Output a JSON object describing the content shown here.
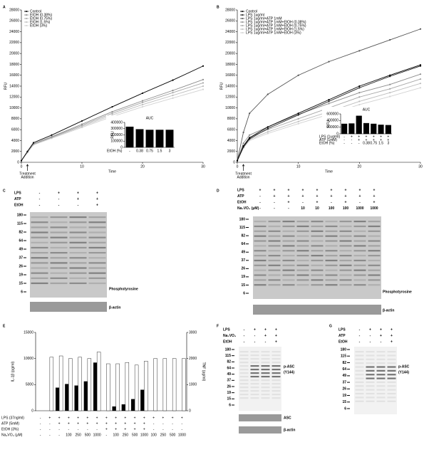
{
  "panel_labels": [
    "A",
    "B",
    "C",
    "D",
    "E",
    "F",
    "G"
  ],
  "chart_data": [
    {
      "type": "line",
      "xlabel": "Time",
      "ylabel": "RFU",
      "xlim": [
        0,
        30
      ],
      "ylim": [
        0,
        28000
      ],
      "xticks": [
        0,
        10,
        20,
        30
      ],
      "yticks": [
        0,
        2000,
        4000,
        6000,
        8000,
        10000,
        12000,
        14000,
        16000,
        18000,
        20000,
        22000,
        24000,
        26000,
        28000
      ],
      "annotation": [
        "Treatment",
        "Addition"
      ],
      "legend": "upper left",
      "x": [
        0,
        1,
        2,
        5,
        10,
        15,
        20,
        25,
        30
      ],
      "series": [
        {
          "name": "Control",
          "color": "#000000",
          "values": [
            300,
            2000,
            3600,
            5000,
            7600,
            10200,
            12700,
            15100,
            17700
          ]
        },
        {
          "name": "EtOH (0.38%)",
          "color": "#8c8c8c",
          "values": [
            300,
            1900,
            3400,
            4700,
            7000,
            9300,
            11300,
            13200,
            15200
          ]
        },
        {
          "name": "EtOH (0.75%)",
          "color": "#a6a6a6",
          "values": [
            300,
            1900,
            3400,
            4600,
            6800,
            9000,
            11000,
            12800,
            14600
          ]
        },
        {
          "name": "EtOH (1.5%)",
          "color": "#bdbdbd",
          "values": [
            300,
            1800,
            3300,
            4500,
            6600,
            8700,
            10600,
            12300,
            14000
          ]
        },
        {
          "name": "EtOH (3%)",
          "color": "#d2d2d2",
          "values": [
            300,
            1800,
            3200,
            4400,
            6400,
            8400,
            10200,
            11800,
            13400
          ]
        }
      ]
    },
    {
      "type": "bar",
      "title": "AUC",
      "ylabel": "RFU",
      "ylim": [
        0,
        400000
      ],
      "yticks": [
        0,
        100000,
        200000,
        300000,
        400000
      ],
      "series": [
        {
          "color": "#000000",
          "values": [
            330000,
            290000,
            280000,
            280000,
            280000
          ]
        }
      ],
      "table": [
        {
          "name": "EtOH (%)",
          "cells": [
            "-",
            "0.38",
            "0.75",
            "1.5",
            "3"
          ]
        }
      ]
    },
    {
      "type": "line",
      "xlabel": "Time",
      "ylabel": "RFU",
      "xlim": [
        0,
        30
      ],
      "ylim": [
        0,
        28000
      ],
      "xticks": [
        0,
        10,
        20,
        30
      ],
      "yticks": [
        0,
        2000,
        4000,
        6000,
        8000,
        10000,
        12000,
        14000,
        16000,
        18000,
        20000,
        22000,
        24000,
        26000,
        28000
      ],
      "annotation": [
        "Treatment",
        "Addition"
      ],
      "legend": "upper left",
      "x": [
        0,
        1,
        2,
        5,
        10,
        15,
        20,
        25,
        30
      ],
      "series": [
        {
          "name": "Control",
          "color": "#000000",
          "values": [
            300,
            3000,
            4500,
            6500,
            9000,
            11500,
            14000,
            16000,
            17900
          ]
        },
        {
          "name": "LPS 1ug/ml",
          "color": "#1a1a1a",
          "values": [
            300,
            2800,
            4300,
            6200,
            8700,
            11200,
            13700,
            15800,
            17700
          ]
        },
        {
          "name": "LPS 1ug/ml+ATP 1mM",
          "color": "#555555",
          "values": [
            300,
            5500,
            9000,
            12500,
            16000,
            18500,
            20500,
            22500,
            24500
          ]
        },
        {
          "name": "LPS 1ug/ml+ATP 1mM+EtOH (0.38%)",
          "color": "#8c8c8c",
          "values": [
            300,
            3500,
            5000,
            6500,
            8800,
            10800,
            12800,
            14300,
            16200
          ]
        },
        {
          "name": "LPS 1ug/ml+ATP 1mM+EtOH (0.75%)",
          "color": "#a6a6a6",
          "values": [
            300,
            3000,
            4600,
            6000,
            8000,
            10000,
            12000,
            13500,
            15300
          ]
        },
        {
          "name": "LPS 1ug/ml+ATP 1mM+EtOH (1.5%)",
          "color": "#bdbdbd",
          "values": [
            300,
            2800,
            4200,
            5600,
            7500,
            9300,
            11200,
            12800,
            14500
          ]
        },
        {
          "name": "LPS 1ug/ml+ATP 1mM+EtOH (3%)",
          "color": "#d2d2d2",
          "values": [
            300,
            2600,
            4000,
            5300,
            7100,
            8800,
            10600,
            12100,
            13700
          ]
        }
      ]
    },
    {
      "type": "bar",
      "title": "AUC",
      "ylabel": "RFU",
      "ylim": [
        0,
        600000
      ],
      "yticks": [
        0,
        200000,
        400000,
        600000
      ],
      "series": [
        {
          "color": "#000000",
          "values": [
            300000,
            310000,
            540000,
            320000,
            300000,
            270000,
            260000
          ]
        }
      ],
      "table": [
        {
          "name": "LPS (1ug/ml)",
          "cells": [
            "-",
            "+",
            "+",
            "+",
            "+",
            "+",
            "+"
          ]
        },
        {
          "name": "ATP (1mM)",
          "cells": [
            "-",
            "-",
            "+",
            "+",
            "+",
            "+",
            "+"
          ]
        },
        {
          "name": "EtOH (%)",
          "cells": [
            "-",
            "-",
            "-",
            "0.38",
            "0.75",
            "1.5",
            "3"
          ]
        }
      ]
    },
    {
      "type": "bar",
      "ylabel": "IL-1β (pg/ml)",
      "y2label": "TNF (pg/ml)",
      "ylim": [
        0,
        15000
      ],
      "yticks": [
        0,
        5000,
        10000,
        15000
      ],
      "y2lim": [
        0,
        3000
      ],
      "y2ticks": [
        0,
        1000,
        2000,
        3000
      ],
      "series": [
        {
          "color": "#000000",
          "values": [
            0,
            0,
            4400,
            5100,
            4800,
            5600,
            9200,
            0,
            800,
            1200,
            2200,
            4000,
            0,
            0,
            0,
            0
          ]
        },
        {
          "color": "#ffffff",
          "axis": "y2",
          "values": [
            0,
            2050,
            2100,
            2000,
            2050,
            2000,
            2250,
            1800,
            1800,
            1850,
            1750,
            1900,
            2000,
            2000,
            2000,
            2000
          ]
        }
      ],
      "table": [
        {
          "name": "LPS (37ng/ml)",
          "cells": [
            "-",
            "+",
            "+",
            "+",
            "+",
            "+",
            "+",
            "+",
            "+",
            "+",
            "+",
            "+",
            "+",
            "+",
            "+",
            "+"
          ]
        },
        {
          "name": "ATP (5mM)",
          "cells": [
            "-",
            "-",
            "+",
            "+",
            "+",
            "+",
            "+",
            "+",
            "+",
            "+",
            "+",
            "+",
            "-",
            "-",
            "-",
            "-"
          ]
        },
        {
          "name": "EtOH (3%)",
          "cells": [
            "-",
            "-",
            "-",
            "-",
            "-",
            "-",
            "-",
            "+",
            "+",
            "+",
            "+",
            "+",
            "-",
            "-",
            "-",
            "-"
          ]
        },
        {
          "name": "Na₃VO₄ (μM)",
          "cells": [
            "-",
            "-",
            "-",
            "100",
            "250",
            "500",
            "1000",
            "-",
            "100",
            "250",
            "500",
            "1000",
            "100",
            "250",
            "500",
            "1000"
          ]
        }
      ]
    }
  ],
  "blots": [
    {
      "rows": [
        {
          "name": "LPS",
          "cells": [
            "-",
            "+",
            "+",
            "+"
          ]
        },
        {
          "name": "ATP",
          "cells": [
            "-",
            "-",
            "+",
            "+"
          ]
        },
        {
          "name": "EtOH",
          "cells": [
            "-",
            "-",
            "-",
            "+"
          ]
        }
      ],
      "markers": [
        180,
        115,
        82,
        64,
        49,
        37,
        26,
        19,
        15,
        6
      ],
      "labels": [
        "Phosphotyrosine",
        "β-actin"
      ]
    },
    {
      "rows": [
        {
          "name": "LPS",
          "cells": [
            "+",
            "+",
            "+",
            "+",
            "+",
            "+",
            "+",
            "+",
            "+"
          ]
        },
        {
          "name": "ATP",
          "cells": [
            "-",
            "+",
            "+",
            "+",
            "+",
            "+",
            "+",
            "+",
            "+"
          ]
        },
        {
          "name": "EtOH",
          "cells": [
            "-",
            "-",
            "+",
            "-",
            "+",
            "-",
            "+",
            "-",
            "+"
          ]
        },
        {
          "name": "Na₃VO₄ (μM)",
          "cells": [
            "-",
            "-",
            "-",
            "10",
            "10",
            "100",
            "100",
            "1000",
            "1000"
          ]
        }
      ],
      "markers": [
        180,
        115,
        82,
        64,
        49,
        37,
        26,
        19,
        15,
        6
      ],
      "labels": [
        "Phosphotyrosine",
        "β-actin"
      ]
    },
    {
      "rows": [
        {
          "name": "LPS",
          "cells": [
            "-",
            "+",
            "+",
            "+"
          ]
        },
        {
          "name": "Na₃VO₄",
          "cells": [
            "-",
            "-",
            "+",
            "+"
          ]
        },
        {
          "name": "EtOH",
          "cells": [
            "-",
            "-",
            "-",
            "+"
          ]
        }
      ],
      "markers": [
        180,
        115,
        82,
        64,
        49,
        37,
        26,
        19,
        15,
        6
      ],
      "labels": [
        [
          "p-ASC",
          "(Y144)"
        ],
        "ASC",
        "β-actin"
      ]
    },
    {
      "rows": [
        {
          "name": "LPS",
          "cells": [
            "-",
            "+",
            "+",
            "+"
          ]
        },
        {
          "name": "ATP",
          "cells": [
            "-",
            "-",
            "+",
            "+"
          ]
        },
        {
          "name": "EtOH",
          "cells": [
            "-",
            "-",
            "-",
            "+"
          ]
        }
      ],
      "markers": [
        180,
        115,
        82,
        64,
        49,
        37,
        26,
        19,
        15,
        6
      ],
      "labels": [
        [
          "p-ASC",
          "(Y144)"
        ]
      ]
    }
  ]
}
